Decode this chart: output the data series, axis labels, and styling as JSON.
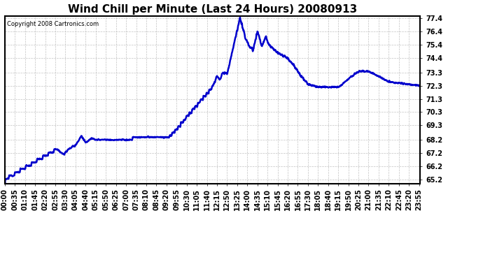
{
  "title": "Wind Chill per Minute (Last 24 Hours) 20080913",
  "copyright": "Copyright 2008 Cartronics.com",
  "line_color": "#0000cc",
  "background_color": "#ffffff",
  "grid_color": "#bbbbbb",
  "border_color": "#000000",
  "yticks": [
    65.2,
    66.2,
    67.2,
    68.2,
    69.3,
    70.3,
    71.3,
    72.3,
    73.3,
    74.4,
    75.4,
    76.4,
    77.4
  ],
  "ylim": [
    64.9,
    77.6
  ],
  "title_fontsize": 11,
  "tick_fontsize": 7,
  "line_width": 1.8,
  "tick_interval_min": 35
}
